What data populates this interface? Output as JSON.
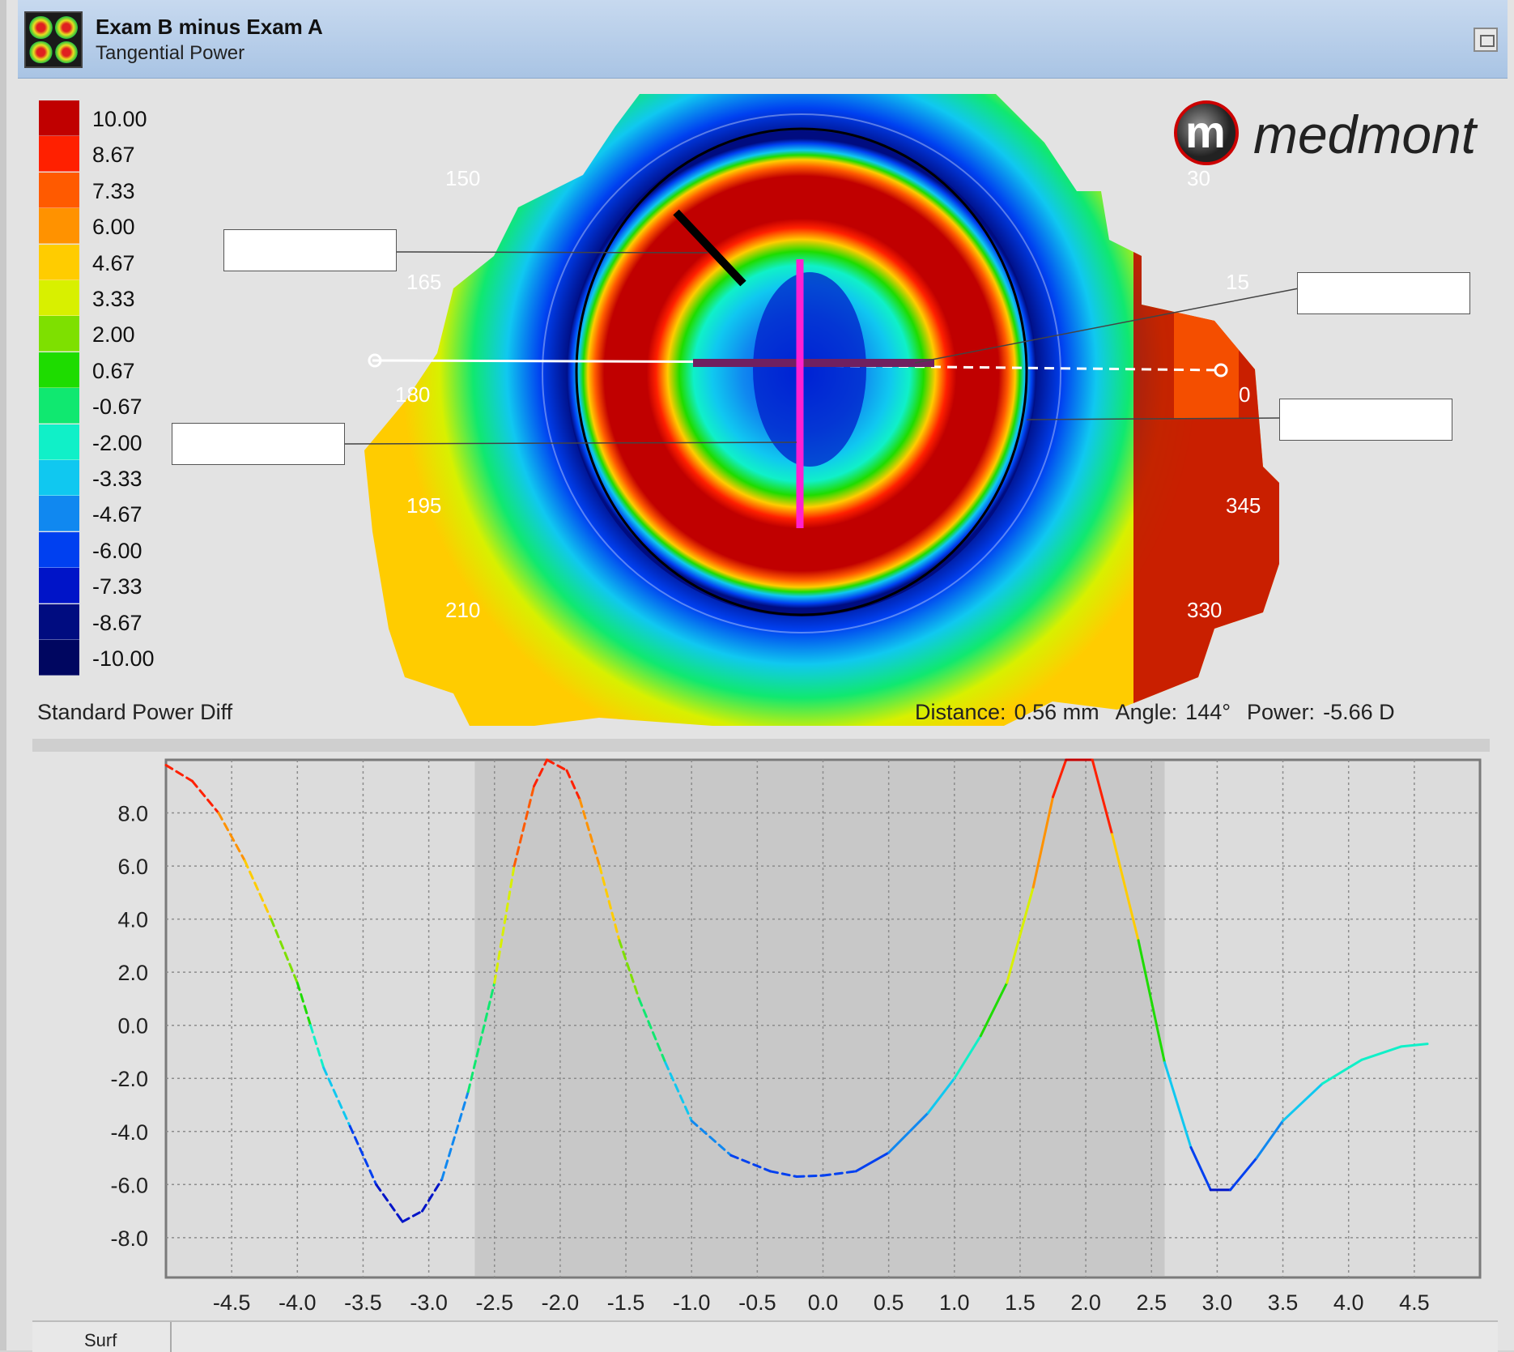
{
  "window": {
    "title": "Exam B minus Exam A",
    "subtitle": "Tangential Power",
    "restore_icon": "restore-window-icon"
  },
  "legend": {
    "title": "Standard Power Diff",
    "entries": [
      {
        "label": "10.00",
        "color": "#c00000"
      },
      {
        "label": "8.67",
        "color": "#ff2000"
      },
      {
        "label": "7.33",
        "color": "#ff5a00"
      },
      {
        "label": "6.00",
        "color": "#ff9200"
      },
      {
        "label": "4.67",
        "color": "#ffcc00"
      },
      {
        "label": "3.33",
        "color": "#d8f000"
      },
      {
        "label": "2.00",
        "color": "#7ee000"
      },
      {
        "label": "0.67",
        "color": "#1edc00"
      },
      {
        "label": "-0.67",
        "color": "#10e870"
      },
      {
        "label": "-2.00",
        "color": "#10f0c8"
      },
      {
        "label": "-3.33",
        "color": "#10c8f0"
      },
      {
        "label": "-4.67",
        "color": "#1088f0"
      },
      {
        "label": "-6.00",
        "color": "#0040f0"
      },
      {
        "label": "-7.33",
        "color": "#0014c8"
      },
      {
        "label": "-8.67",
        "color": "#000c80"
      },
      {
        "label": "-10.00",
        "color": "#000660"
      }
    ]
  },
  "map": {
    "angle_labels": [
      "150",
      "165",
      "180",
      "195",
      "210",
      "30",
      "15",
      "0",
      "345",
      "330"
    ]
  },
  "readout": {
    "distance_label": "Distance:",
    "distance_value": "0.56 mm",
    "angle_label": "Angle:",
    "angle_value": "144°",
    "power_label": "Power:",
    "power_value": "-5.66 D"
  },
  "logo": {
    "text": "medmont"
  },
  "chart_data": {
    "type": "line",
    "xlim": [
      -5.0,
      5.0
    ],
    "ylim": [
      -9.5,
      10.0
    ],
    "x_ticks": [
      "-4.5",
      "-4.0",
      "-3.5",
      "-3.0",
      "-2.5",
      "-2.0",
      "-1.5",
      "-1.0",
      "-0.5",
      "0.0",
      "0.5",
      "1.0",
      "1.5",
      "2.0",
      "2.5",
      "3.0",
      "3.5",
      "4.0",
      "4.5"
    ],
    "y_ticks": [
      "8.0",
      "6.0",
      "4.0",
      "2.0",
      "0.0",
      "-2.0",
      "-4.0",
      "-6.0",
      "-8.0"
    ],
    "shaded_region": [
      -2.65,
      2.6
    ],
    "grid": true,
    "series": [
      {
        "style": "dashed",
        "points": [
          [
            -5.0,
            9.8
          ],
          [
            -4.8,
            9.2
          ],
          [
            -4.6,
            8.0
          ],
          [
            -4.4,
            6.2
          ],
          [
            -4.2,
            4.0
          ],
          [
            -4.0,
            1.6
          ],
          [
            -3.9,
            0.0
          ],
          [
            -3.8,
            -1.6
          ],
          [
            -3.6,
            -3.8
          ],
          [
            -3.4,
            -6.0
          ],
          [
            -3.2,
            -7.4
          ],
          [
            -3.05,
            -7.0
          ],
          [
            -2.9,
            -5.8
          ],
          [
            -2.7,
            -2.5
          ],
          [
            -2.5,
            1.6
          ],
          [
            -2.35,
            6.0
          ],
          [
            -2.2,
            9.0
          ],
          [
            -2.1,
            10.0
          ],
          [
            -1.95,
            9.6
          ],
          [
            -1.85,
            8.5
          ],
          [
            -1.7,
            6.0
          ],
          [
            -1.55,
            3.2
          ],
          [
            -1.4,
            1.0
          ],
          [
            -1.2,
            -1.4
          ],
          [
            -1.0,
            -3.6
          ],
          [
            -0.7,
            -4.9
          ],
          [
            -0.4,
            -5.5
          ],
          [
            -0.2,
            -5.7
          ],
          [
            0.0,
            -5.66
          ],
          [
            0.25,
            -5.5
          ]
        ]
      },
      {
        "style": "solid",
        "points": [
          [
            0.25,
            -5.5
          ],
          [
            0.5,
            -4.8
          ],
          [
            0.8,
            -3.3
          ],
          [
            1.0,
            -2.0
          ],
          [
            1.2,
            -0.4
          ],
          [
            1.4,
            1.6
          ],
          [
            1.6,
            5.2
          ],
          [
            1.75,
            8.6
          ],
          [
            1.85,
            10.0
          ],
          [
            2.05,
            10.0
          ],
          [
            2.2,
            7.2
          ],
          [
            2.4,
            3.2
          ],
          [
            2.6,
            -1.4
          ],
          [
            2.8,
            -4.6
          ],
          [
            2.95,
            -6.2
          ],
          [
            3.1,
            -6.2
          ],
          [
            3.3,
            -5.0
          ],
          [
            3.5,
            -3.6
          ],
          [
            3.8,
            -2.2
          ],
          [
            4.1,
            -1.3
          ],
          [
            4.4,
            -0.8
          ],
          [
            4.6,
            -0.7
          ]
        ]
      }
    ]
  },
  "bottom_tab": {
    "label": "Surf"
  }
}
